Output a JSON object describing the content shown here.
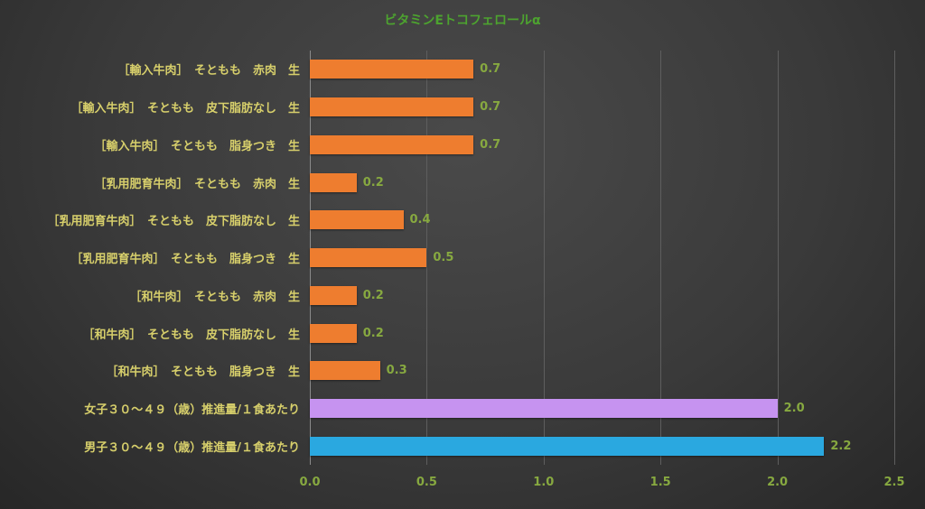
{
  "chart_data": {
    "type": "bar",
    "orientation": "horizontal",
    "title": "ビタミンEトコフェロールα",
    "categories": [
      "［輸入牛肉］　そともも　赤肉　生",
      "［輸入牛肉］　そともも　皮下脂肪なし　生",
      "［輸入牛肉］　そともも　脂身つき　生",
      "［乳用肥育牛肉］　そともも　赤肉　生",
      "［乳用肥育牛肉］　そともも　皮下脂肪なし　生",
      "［乳用肥育牛肉］　そともも　脂身つき　生",
      "［和牛肉］　そともも　赤肉　生",
      "［和牛肉］　そともも　皮下脂肪なし　生",
      "［和牛肉］　そともも　脂身つき　生",
      "女子３０～４９（歳）推進量/１食あたり",
      "男子３０～４９（歳）推進量/１食あたり"
    ],
    "values": [
      0.7,
      0.7,
      0.7,
      0.2,
      0.4,
      0.5,
      0.2,
      0.2,
      0.3,
      2.0,
      2.2
    ],
    "value_labels": [
      "0.7",
      "0.7",
      "0.7",
      "0.2",
      "0.4",
      "0.5",
      "0.2",
      "0.2",
      "0.3",
      "2.0",
      "2.2"
    ],
    "bar_colors": [
      "#EE7D2F",
      "#EE7D2F",
      "#EE7D2F",
      "#EE7D2F",
      "#EE7D2F",
      "#EE7D2F",
      "#EE7D2F",
      "#EE7D2F",
      "#EE7D2F",
      "#C693F0",
      "#2AA8E0"
    ],
    "xlim": [
      0,
      2.5
    ],
    "xticks": [
      "0.0",
      "0.5",
      "1.0",
      "1.5",
      "2.0",
      "2.5"
    ],
    "xlabel": "",
    "ylabel": "",
    "grid": "vertical-on",
    "legend": "none",
    "colors": {
      "title": "#4DA32F",
      "category_label": "#D7CF6B",
      "value_label": "#87A940",
      "tick_label": "#87A940",
      "gridline": "#5e5e5e",
      "background_dark": "#3a3a3a"
    }
  }
}
